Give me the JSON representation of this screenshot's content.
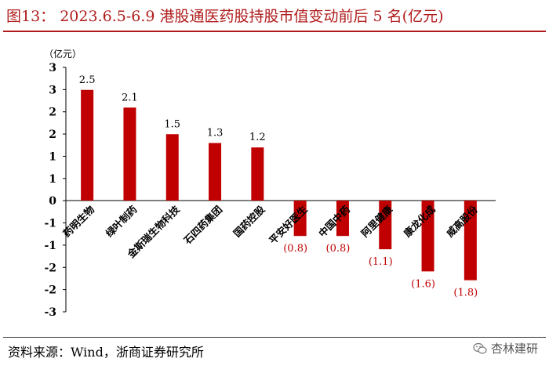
{
  "header": {
    "title": "图13：  2023.6.5-6.9 港股通医药股持股市值变动前后 5 名(亿元)"
  },
  "footer": {
    "source": "资料来源：Wind，浙商证券研究所",
    "watermark": "杏林建研"
  },
  "colors": {
    "bar": "#c00000",
    "title": "#b01c1c",
    "negative_label": "#c00000"
  },
  "chart_data": {
    "type": "bar",
    "unit_label": "（亿元）",
    "categories": [
      "药明生物",
      "绿叶制药",
      "金斯瑞生物科技",
      "石四药集团",
      "国药控股",
      "平安好医生",
      "中国中药",
      "阿里健康",
      "康龙化成",
      "威高股份"
    ],
    "values": [
      2.5,
      2.1,
      1.5,
      1.3,
      1.2,
      -0.8,
      -0.8,
      -1.1,
      -1.6,
      -1.8
    ],
    "data_labels": [
      "2.5",
      "2.1",
      "1.5",
      "1.3",
      "1.2",
      "(0.8)",
      "(0.8)",
      "(1.1)",
      "(1.6)",
      "(1.8)"
    ],
    "y_ticks": [
      "3",
      "3",
      "2",
      "2",
      "1",
      "1",
      "0",
      "-1",
      "-1",
      "-2",
      "-2",
      "-3"
    ],
    "ylim": [
      -2.5,
      3.0
    ],
    "grid": false,
    "legend": "none"
  }
}
